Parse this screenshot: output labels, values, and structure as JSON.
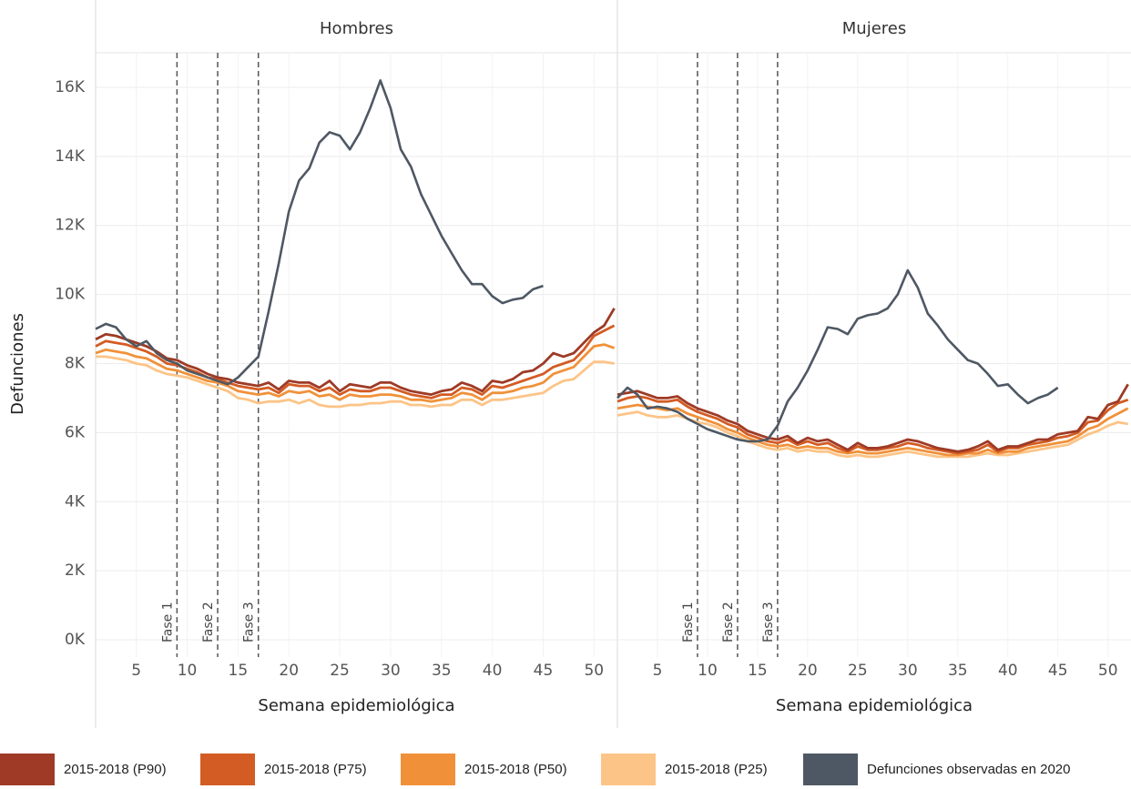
{
  "chart_data": [
    {
      "type": "line",
      "title": "Hombres",
      "xlabel": "Semana epidemiológica",
      "ylabel": "Defunciones",
      "x": [
        1,
        2,
        3,
        4,
        5,
        6,
        7,
        8,
        9,
        10,
        11,
        12,
        13,
        14,
        15,
        16,
        17,
        18,
        19,
        20,
        21,
        22,
        23,
        24,
        25,
        26,
        27,
        28,
        29,
        30,
        31,
        32,
        33,
        34,
        35,
        36,
        37,
        38,
        39,
        40,
        41,
        42,
        43,
        44,
        45,
        46,
        47,
        48,
        49,
        50,
        51,
        52
      ],
      "xlim": [
        1,
        52.3
      ],
      "xticks": [
        5,
        10,
        15,
        20,
        25,
        30,
        35,
        40,
        45,
        50
      ],
      "ylim": [
        -500,
        17000
      ],
      "yticks": [
        {
          "value": 0,
          "label": "0K"
        },
        {
          "value": 2000,
          "label": "2K"
        },
        {
          "value": 4000,
          "label": "4K"
        },
        {
          "value": 6000,
          "label": "6K"
        },
        {
          "value": 8000,
          "label": "8K"
        },
        {
          "value": 10000,
          "label": "10K"
        },
        {
          "value": 12000,
          "label": "12K"
        },
        {
          "value": 14000,
          "label": "14K"
        },
        {
          "value": 16000,
          "label": "16K"
        }
      ],
      "annotations": [
        {
          "x": 9,
          "text": "Fase 1"
        },
        {
          "x": 13,
          "text": "Fase 2"
        },
        {
          "x": 17,
          "text": "Fase 3"
        }
      ],
      "series": [
        {
          "name": "2015-2018 (P90)",
          "color": "#9e3a26",
          "values": [
            8700,
            8850,
            8800,
            8700,
            8600,
            8500,
            8350,
            8150,
            8100,
            7950,
            7850,
            7700,
            7600,
            7550,
            7450,
            7400,
            7350,
            7450,
            7250,
            7500,
            7450,
            7450,
            7300,
            7500,
            7200,
            7400,
            7350,
            7300,
            7450,
            7450,
            7300,
            7200,
            7150,
            7100,
            7200,
            7250,
            7450,
            7350,
            7200,
            7500,
            7450,
            7550,
            7750,
            7800,
            8000,
            8300,
            8200,
            8300,
            8600,
            8900,
            9100,
            9600
          ]
        },
        {
          "name": "2015-2018 (P75)",
          "color": "#d35c24",
          "values": [
            8500,
            8650,
            8600,
            8550,
            8450,
            8350,
            8200,
            8000,
            7950,
            7850,
            7750,
            7600,
            7550,
            7450,
            7350,
            7300,
            7250,
            7300,
            7150,
            7400,
            7350,
            7350,
            7200,
            7300,
            7100,
            7250,
            7200,
            7200,
            7300,
            7300,
            7200,
            7100,
            7050,
            7000,
            7100,
            7100,
            7300,
            7250,
            7100,
            7350,
            7300,
            7400,
            7500,
            7600,
            7700,
            7900,
            8000,
            8100,
            8400,
            8800,
            8950,
            9100
          ]
        },
        {
          "name": "2015-2018 (P50)",
          "color": "#f0913a",
          "values": [
            8300,
            8400,
            8350,
            8300,
            8200,
            8150,
            8000,
            7850,
            7800,
            7700,
            7600,
            7500,
            7450,
            7350,
            7200,
            7150,
            7100,
            7150,
            7050,
            7200,
            7150,
            7200,
            7050,
            7100,
            6950,
            7100,
            7050,
            7050,
            7100,
            7100,
            7050,
            6950,
            6950,
            6900,
            6950,
            7000,
            7150,
            7100,
            6950,
            7150,
            7150,
            7200,
            7300,
            7350,
            7450,
            7700,
            7800,
            7900,
            8200,
            8500,
            8550,
            8450
          ]
        },
        {
          "name": "2015-2018 (P25)",
          "color": "#fcc487",
          "values": [
            8200,
            8200,
            8150,
            8100,
            8000,
            7950,
            7800,
            7700,
            7650,
            7600,
            7500,
            7400,
            7300,
            7200,
            7000,
            6950,
            6850,
            6900,
            6900,
            6950,
            6850,
            6950,
            6800,
            6750,
            6750,
            6800,
            6800,
            6850,
            6850,
            6900,
            6900,
            6800,
            6800,
            6750,
            6800,
            6800,
            6950,
            6950,
            6800,
            6950,
            6950,
            7000,
            7050,
            7100,
            7150,
            7350,
            7500,
            7550,
            7800,
            8050,
            8050,
            8000
          ]
        },
        {
          "name": "Defunciones observadas en 2020",
          "color": "#4e5864",
          "values": [
            9000,
            9150,
            9050,
            8700,
            8500,
            8650,
            8300,
            8100,
            8000,
            7800,
            7700,
            7600,
            7500,
            7400,
            7600,
            7900,
            8200,
            9500,
            10900,
            12400,
            13300,
            13650,
            14400,
            14700,
            14600,
            14200,
            14700,
            15400,
            16200,
            15400,
            14200,
            13700,
            12900,
            12300,
            11700,
            11200,
            10700,
            10300,
            10300,
            9950,
            9750,
            9850,
            9900,
            10150,
            10250,
            null,
            null,
            null,
            null,
            null,
            null,
            null
          ]
        }
      ]
    },
    {
      "type": "line",
      "title": "Mujeres",
      "xlabel": "Semana epidemiológica",
      "x": [
        1,
        2,
        3,
        4,
        5,
        6,
        7,
        8,
        9,
        10,
        11,
        12,
        13,
        14,
        15,
        16,
        17,
        18,
        19,
        20,
        21,
        22,
        23,
        24,
        25,
        26,
        27,
        28,
        29,
        30,
        31,
        32,
        33,
        34,
        35,
        36,
        37,
        38,
        39,
        40,
        41,
        42,
        43,
        44,
        45,
        46,
        47,
        48,
        49,
        50,
        51,
        52
      ],
      "xlim": [
        1,
        52.3
      ],
      "xticks": [
        5,
        10,
        15,
        20,
        25,
        30,
        35,
        40,
        45,
        50
      ],
      "ylim": [
        -500,
        17000
      ],
      "annotations": [
        {
          "x": 9,
          "text": "Fase 1"
        },
        {
          "x": 13,
          "text": "Fase 2"
        },
        {
          "x": 17,
          "text": "Fase 3"
        }
      ],
      "series": [
        {
          "name": "2015-2018 (P90)",
          "color": "#9e3a26",
          "values": [
            7100,
            7150,
            7200,
            7100,
            7000,
            7000,
            7050,
            6850,
            6700,
            6600,
            6500,
            6350,
            6250,
            6050,
            5950,
            5850,
            5800,
            5900,
            5700,
            5850,
            5750,
            5800,
            5650,
            5500,
            5700,
            5550,
            5550,
            5600,
            5700,
            5800,
            5750,
            5650,
            5550,
            5500,
            5450,
            5500,
            5600,
            5750,
            5500,
            5600,
            5600,
            5700,
            5800,
            5800,
            5950,
            6000,
            6050,
            6450,
            6400,
            6800,
            6900,
            7400
          ]
        },
        {
          "name": "2015-2018 (P75)",
          "color": "#d35c24",
          "values": [
            6900,
            7000,
            7050,
            7000,
            6900,
            6900,
            6950,
            6750,
            6600,
            6500,
            6400,
            6250,
            6150,
            5950,
            5850,
            5750,
            5700,
            5800,
            5650,
            5750,
            5650,
            5700,
            5550,
            5450,
            5600,
            5500,
            5500,
            5550,
            5600,
            5700,
            5650,
            5550,
            5500,
            5450,
            5400,
            5450,
            5500,
            5650,
            5450,
            5550,
            5550,
            5650,
            5700,
            5750,
            5850,
            5900,
            6000,
            6300,
            6350,
            6650,
            6850,
            6950
          ]
        },
        {
          "name": "2015-2018 (P50)",
          "color": "#f0913a",
          "values": [
            6700,
            6750,
            6800,
            6750,
            6700,
            6650,
            6700,
            6550,
            6450,
            6350,
            6250,
            6100,
            6000,
            5850,
            5750,
            5650,
            5600,
            5650,
            5550,
            5600,
            5550,
            5550,
            5450,
            5400,
            5450,
            5400,
            5400,
            5450,
            5500,
            5550,
            5500,
            5450,
            5400,
            5350,
            5350,
            5400,
            5400,
            5500,
            5400,
            5450,
            5450,
            5550,
            5600,
            5650,
            5700,
            5750,
            5900,
            6100,
            6200,
            6400,
            6550,
            6700
          ]
        },
        {
          "name": "2015-2018 (P25)",
          "color": "#fcc487",
          "values": [
            6500,
            6550,
            6600,
            6500,
            6450,
            6450,
            6500,
            6400,
            6300,
            6250,
            6150,
            6000,
            5900,
            5750,
            5650,
            5550,
            5500,
            5550,
            5450,
            5500,
            5450,
            5450,
            5350,
            5300,
            5350,
            5300,
            5300,
            5350,
            5400,
            5450,
            5400,
            5350,
            5300,
            5300,
            5300,
            5300,
            5350,
            5400,
            5350,
            5350,
            5400,
            5450,
            5500,
            5550,
            5600,
            5650,
            5800,
            5950,
            6050,
            6200,
            6300,
            6250
          ]
        },
        {
          "name": "Defunciones observadas en 2020",
          "color": "#4e5864",
          "values": [
            7000,
            7300,
            7100,
            6700,
            6750,
            6700,
            6600,
            6400,
            6250,
            6100,
            6000,
            5900,
            5800,
            5750,
            5750,
            5800,
            6200,
            6900,
            7300,
            7800,
            8400,
            9050,
            9000,
            8850,
            9300,
            9400,
            9450,
            9600,
            10000,
            10700,
            10200,
            9450,
            9100,
            8700,
            8400,
            8100,
            8000,
            7700,
            7350,
            7400,
            7100,
            6850,
            7000,
            7100,
            7300,
            null,
            null,
            null,
            null,
            null,
            null,
            null
          ]
        }
      ]
    }
  ]
}
